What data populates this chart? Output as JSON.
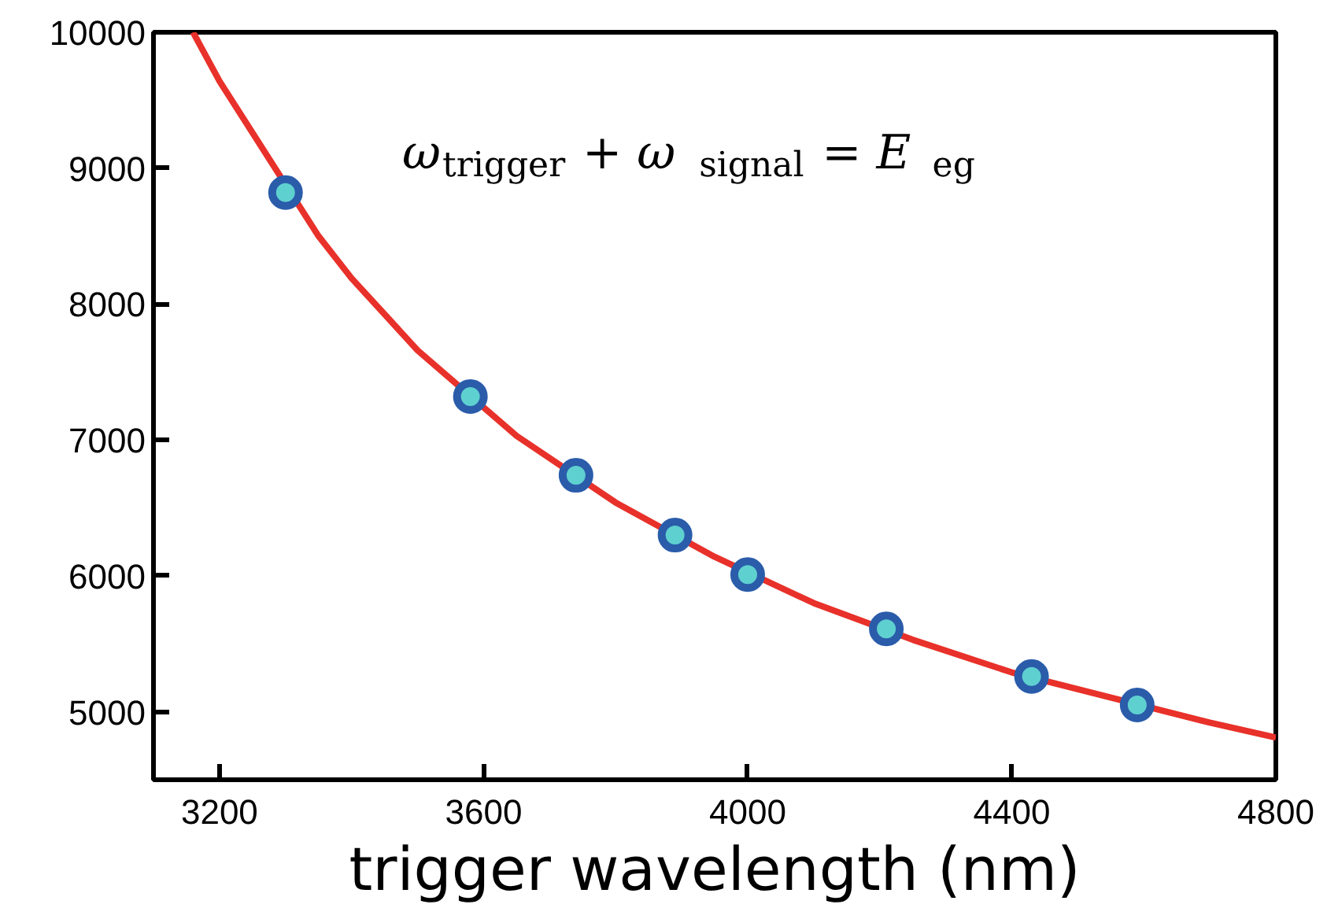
{
  "chart_data": {
    "type": "line",
    "xlabel": "trigger wavelength (nm)",
    "annotations": [
      {
        "text": "ω$_{trigger}$ + ω$_{signal}$ = E$_{eg}$"
      }
    ],
    "xlim": [
      3100,
      4800
    ],
    "ylim": [
      4500,
      10000
    ],
    "xticks": [
      3200,
      3600,
      4000,
      4400,
      4800
    ],
    "yticks": [
      5000,
      6000,
      7000,
      8000,
      9000,
      10000
    ],
    "grid": false,
    "series": [
      {
        "color": "#e8312a",
        "marker": "none",
        "x": [
          3160,
          3200,
          3350,
          3400,
          3500,
          3650,
          3800,
          3950,
          4100,
          4250,
          4400,
          4700,
          4800
        ],
        "values": [
          10000,
          9640,
          8500,
          8190,
          7660,
          7030,
          6540,
          6140,
          5800,
          5530,
          5290,
          4920,
          4810
        ]
      },
      {
        "type": "scatter",
        "marker": "circle",
        "color": "#2a5caa",
        "x": [
          3300,
          3580,
          3740,
          3890,
          4000,
          4210,
          4430,
          4590
        ],
        "values": [
          8820,
          7320,
          6740,
          6300,
          6010,
          5610,
          5260,
          5050
        ]
      }
    ]
  }
}
